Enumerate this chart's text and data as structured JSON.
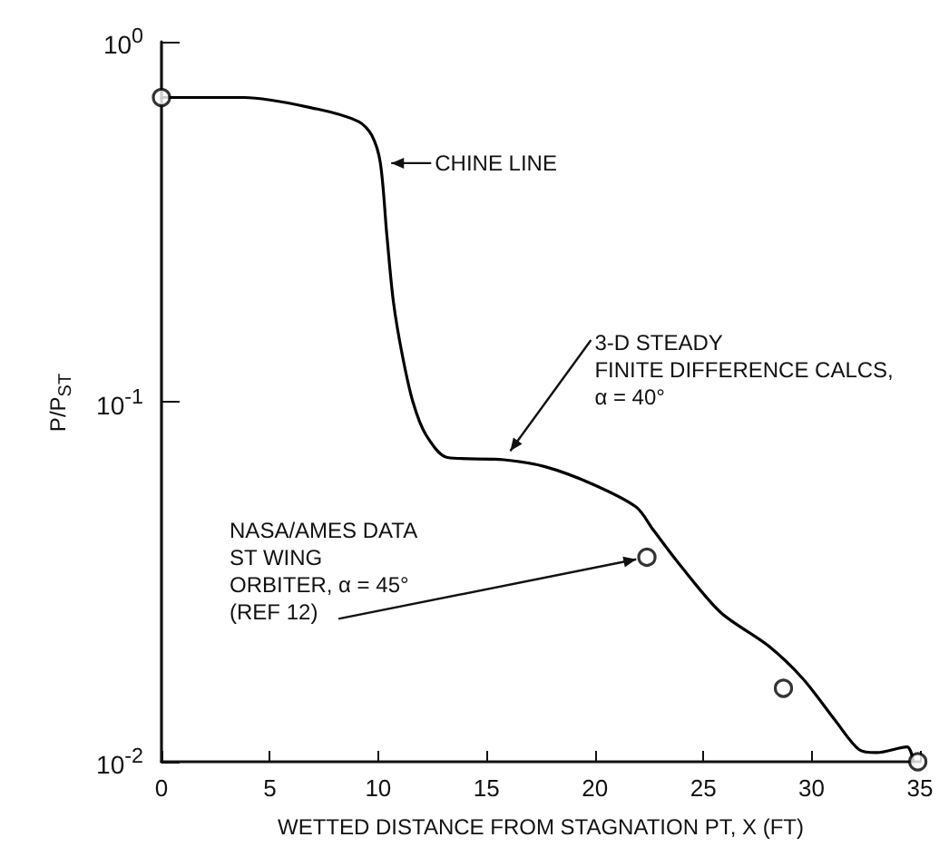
{
  "chart_data": {
    "type": "line",
    "xlabel": "WETTED DISTANCE FROM STAGNATION PT, X (FT)",
    "ylabel": "P/P$_{ST}$",
    "log": "y",
    "xlim": [
      0,
      35
    ],
    "xticks": [
      0,
      5,
      10,
      15,
      20,
      25,
      30,
      35
    ],
    "ylim": [
      0.01,
      1
    ],
    "yticks": [
      {
        "value": 1,
        "label": "10$^{0}$"
      },
      {
        "value": 0.1,
        "label": "10$^{-1}$"
      },
      {
        "value": 0.01,
        "label": "10$^{-2}$"
      }
    ],
    "series": [
      {
        "type": "line",
        "color": "#000000",
        "marker": "none",
        "x": [
          0,
          1,
          3.8,
          7.2,
          9.1,
          9.7,
          10.1,
          10.4,
          10.7,
          11.1,
          11.6,
          12.2,
          13.2,
          15.8,
          17.7,
          19.9,
          21.9,
          22.7,
          23.8,
          25.8,
          28.0,
          29.6,
          31.1,
          32.2,
          33.0,
          34.4,
          34.7
        ],
        "values": [
          0.7,
          0.7,
          0.7,
          0.65,
          0.6,
          0.55,
          0.46,
          0.29,
          0.19,
          0.136,
          0.1,
          0.081,
          0.07,
          0.069,
          0.066,
          0.059,
          0.051,
          0.044,
          0.036,
          0.026,
          0.021,
          0.017,
          0.013,
          0.0108,
          0.0106,
          0.011,
          0.01
        ]
      },
      {
        "type": "scatter",
        "color": "#000000",
        "marker": "circle",
        "x": [
          0,
          22.4,
          28.7,
          34.9
        ],
        "values": [
          0.7,
          0.037,
          0.016,
          0.01
        ]
      }
    ],
    "annotations": [
      {
        "text": "CHINE LINE",
        "x": 10.1,
        "y": 0.46
      },
      {
        "text": "3-D STEADY\nFINITE DIFFERENCE CALCS,\nα = 40°",
        "x": 15.8,
        "y": 0.069
      },
      {
        "text": "NASA/AMES DATA\nST WING\nORBITER, α = 45°\n(REF 12)",
        "x": 22.4,
        "y": 0.037
      }
    ]
  }
}
